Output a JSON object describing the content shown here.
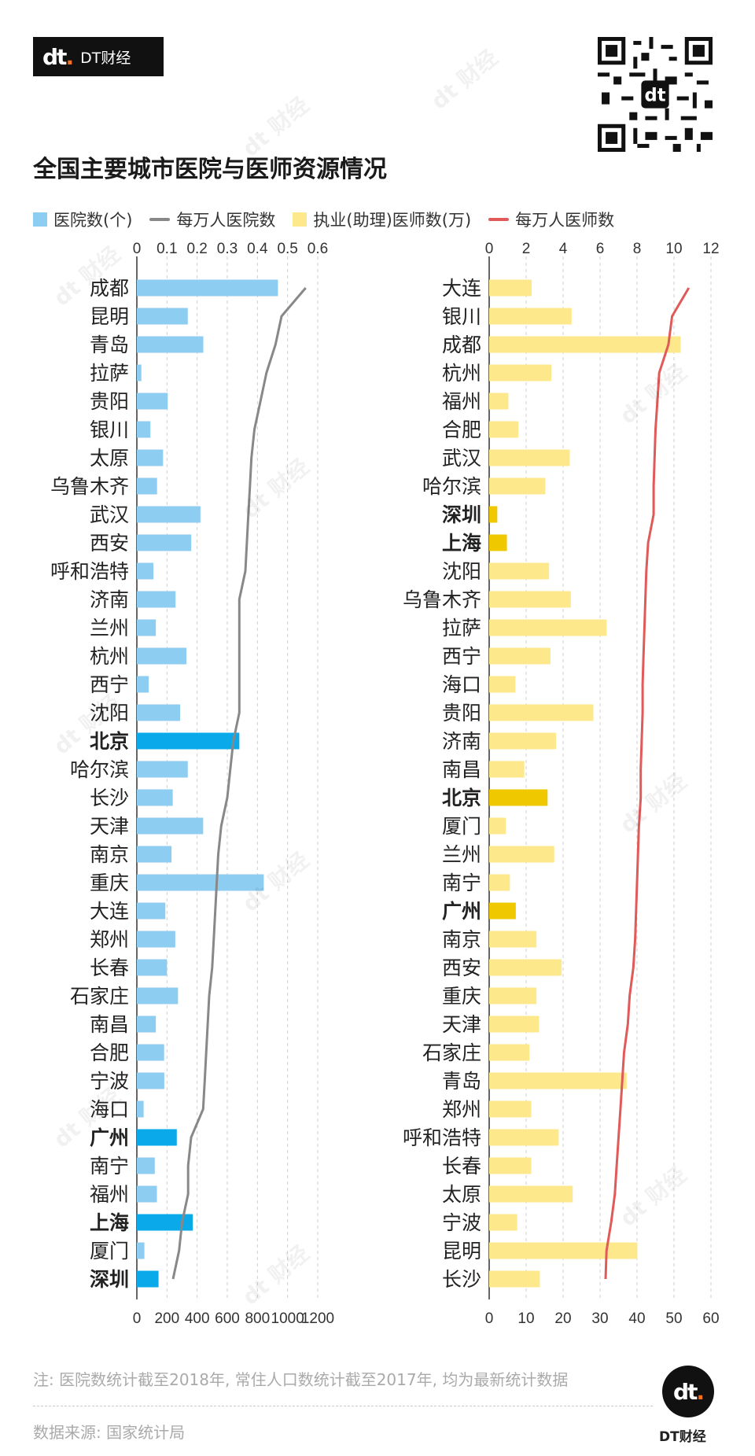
{
  "brand": {
    "mark": "dt",
    "name": "DT财经"
  },
  "title": "全国主要城市医院与医师资源情况",
  "legend": [
    {
      "label": "医院数(个)",
      "kind": "rect",
      "color": "#8ecdf2"
    },
    {
      "label": "每万人医院数",
      "kind": "line",
      "color": "#888888"
    },
    {
      "label": "执业(助理)医师数(万)",
      "kind": "rect",
      "color": "#fde98c"
    },
    {
      "label": "每万人医师数",
      "kind": "line",
      "color": "#e05a5a"
    }
  ],
  "note": "注: 医院数统计截至2018年, 常住人口数统计截至2017年, 均为最新统计数据",
  "source": "数据来源: 国家统计局",
  "chart_data": [
    {
      "type": "bar",
      "orientation": "horizontal",
      "bar_axis": {
        "ticks": [
          "0",
          "200",
          "400",
          "600",
          "800",
          "1000",
          "1200"
        ],
        "range": [
          0,
          1200
        ]
      },
      "line_axis": {
        "ticks": [
          "0",
          "0.1",
          "0.2",
          "0.3",
          "0.4",
          "0.5",
          "0.6"
        ],
        "range": [
          0,
          0.6
        ]
      },
      "categories": [
        "成都",
        "昆明",
        "青岛",
        "拉萨",
        "贵阳",
        "银川",
        "太原",
        "乌鲁木齐",
        "武汉",
        "西安",
        "呼和浩特",
        "济南",
        "兰州",
        "杭州",
        "西宁",
        "沈阳",
        "北京",
        "哈尔滨",
        "长沙",
        "天津",
        "南京",
        "重庆",
        "大连",
        "郑州",
        "长春",
        "石家庄",
        "南昌",
        "合肥",
        "宁波",
        "海口",
        "广州",
        "南宁",
        "福州",
        "上海",
        "厦门",
        "深圳"
      ],
      "highlight": [
        "北京",
        "广州",
        "上海",
        "深圳"
      ],
      "series": [
        {
          "name": "医院数(个)",
          "type": "bar",
          "color": "#8ecdf2",
          "highlight_color": "#0aa9ea",
          "values": [
            936,
            338,
            441,
            30,
            205,
            90,
            174,
            134,
            422,
            361,
            110,
            257,
            126,
            329,
            79,
            287,
            680,
            338,
            238,
            440,
            230,
            842,
            189,
            255,
            200,
            273,
            126,
            181,
            182,
            45,
            265,
            119,
            133,
            371,
            50,
            144
          ]
        },
        {
          "name": "每万人医院数",
          "type": "line",
          "color": "#888888",
          "values": [
            0.56,
            0.48,
            0.46,
            0.43,
            0.41,
            0.39,
            0.38,
            0.375,
            0.37,
            0.365,
            0.36,
            0.34,
            0.34,
            0.34,
            0.34,
            0.34,
            0.32,
            0.31,
            0.3,
            0.28,
            0.27,
            0.265,
            0.26,
            0.255,
            0.25,
            0.24,
            0.235,
            0.23,
            0.225,
            0.22,
            0.18,
            0.17,
            0.17,
            0.15,
            0.14,
            0.12
          ]
        }
      ]
    },
    {
      "type": "bar",
      "orientation": "horizontal",
      "bar_axis": {
        "ticks": [
          "0",
          "10",
          "20",
          "30",
          "40",
          "50",
          "60"
        ],
        "range": [
          0,
          60
        ]
      },
      "line_axis": {
        "ticks": [
          "0",
          "2",
          "4",
          "6",
          "8",
          "10",
          "12"
        ],
        "range": [
          0,
          12
        ]
      },
      "categories": [
        "大连",
        "银川",
        "成都",
        "杭州",
        "福州",
        "合肥",
        "武汉",
        "哈尔滨",
        "深圳",
        "上海",
        "沈阳",
        "乌鲁木齐",
        "拉萨",
        "西宁",
        "海口",
        "贵阳",
        "济南",
        "南昌",
        "北京",
        "厦门",
        "兰州",
        "南宁",
        "广州",
        "南京",
        "西安",
        "重庆",
        "天津",
        "石家庄",
        "青岛",
        "郑州",
        "呼和浩特",
        "长春",
        "太原",
        "宁波",
        "昆明",
        "长沙"
      ],
      "highlight": [
        "深圳",
        "上海",
        "北京",
        "广州"
      ],
      "series": [
        {
          "name": "执业(助理)医师数(万)",
          "type": "bar",
          "color": "#fde98c",
          "highlight_color": "#f0c800",
          "values": [
            11.5,
            22.3,
            51.8,
            16.8,
            5.2,
            7.9,
            21.8,
            15.2,
            2.2,
            4.8,
            16.2,
            22.1,
            31.8,
            16.6,
            7.1,
            28.2,
            18.1,
            9.5,
            15.8,
            4.5,
            17.6,
            5.6,
            7.2,
            12.8,
            19.6,
            12.8,
            13.5,
            10.9,
            37.2,
            11.4,
            18.8,
            11.4,
            22.6,
            7.6,
            40.1,
            13.7
          ]
        },
        {
          "name": "每万人医师数",
          "type": "line",
          "color": "#e05a5a",
          "values": [
            10.8,
            9.9,
            9.7,
            9.2,
            9.1,
            9.0,
            8.95,
            8.9,
            8.9,
            8.6,
            8.5,
            8.45,
            8.4,
            8.35,
            8.3,
            8.3,
            8.25,
            8.2,
            8.2,
            8.1,
            8.05,
            8.0,
            7.95,
            7.9,
            7.8,
            7.6,
            7.5,
            7.3,
            7.2,
            7.1,
            7.0,
            6.9,
            6.8,
            6.6,
            6.35,
            6.3
          ]
        }
      ]
    }
  ]
}
